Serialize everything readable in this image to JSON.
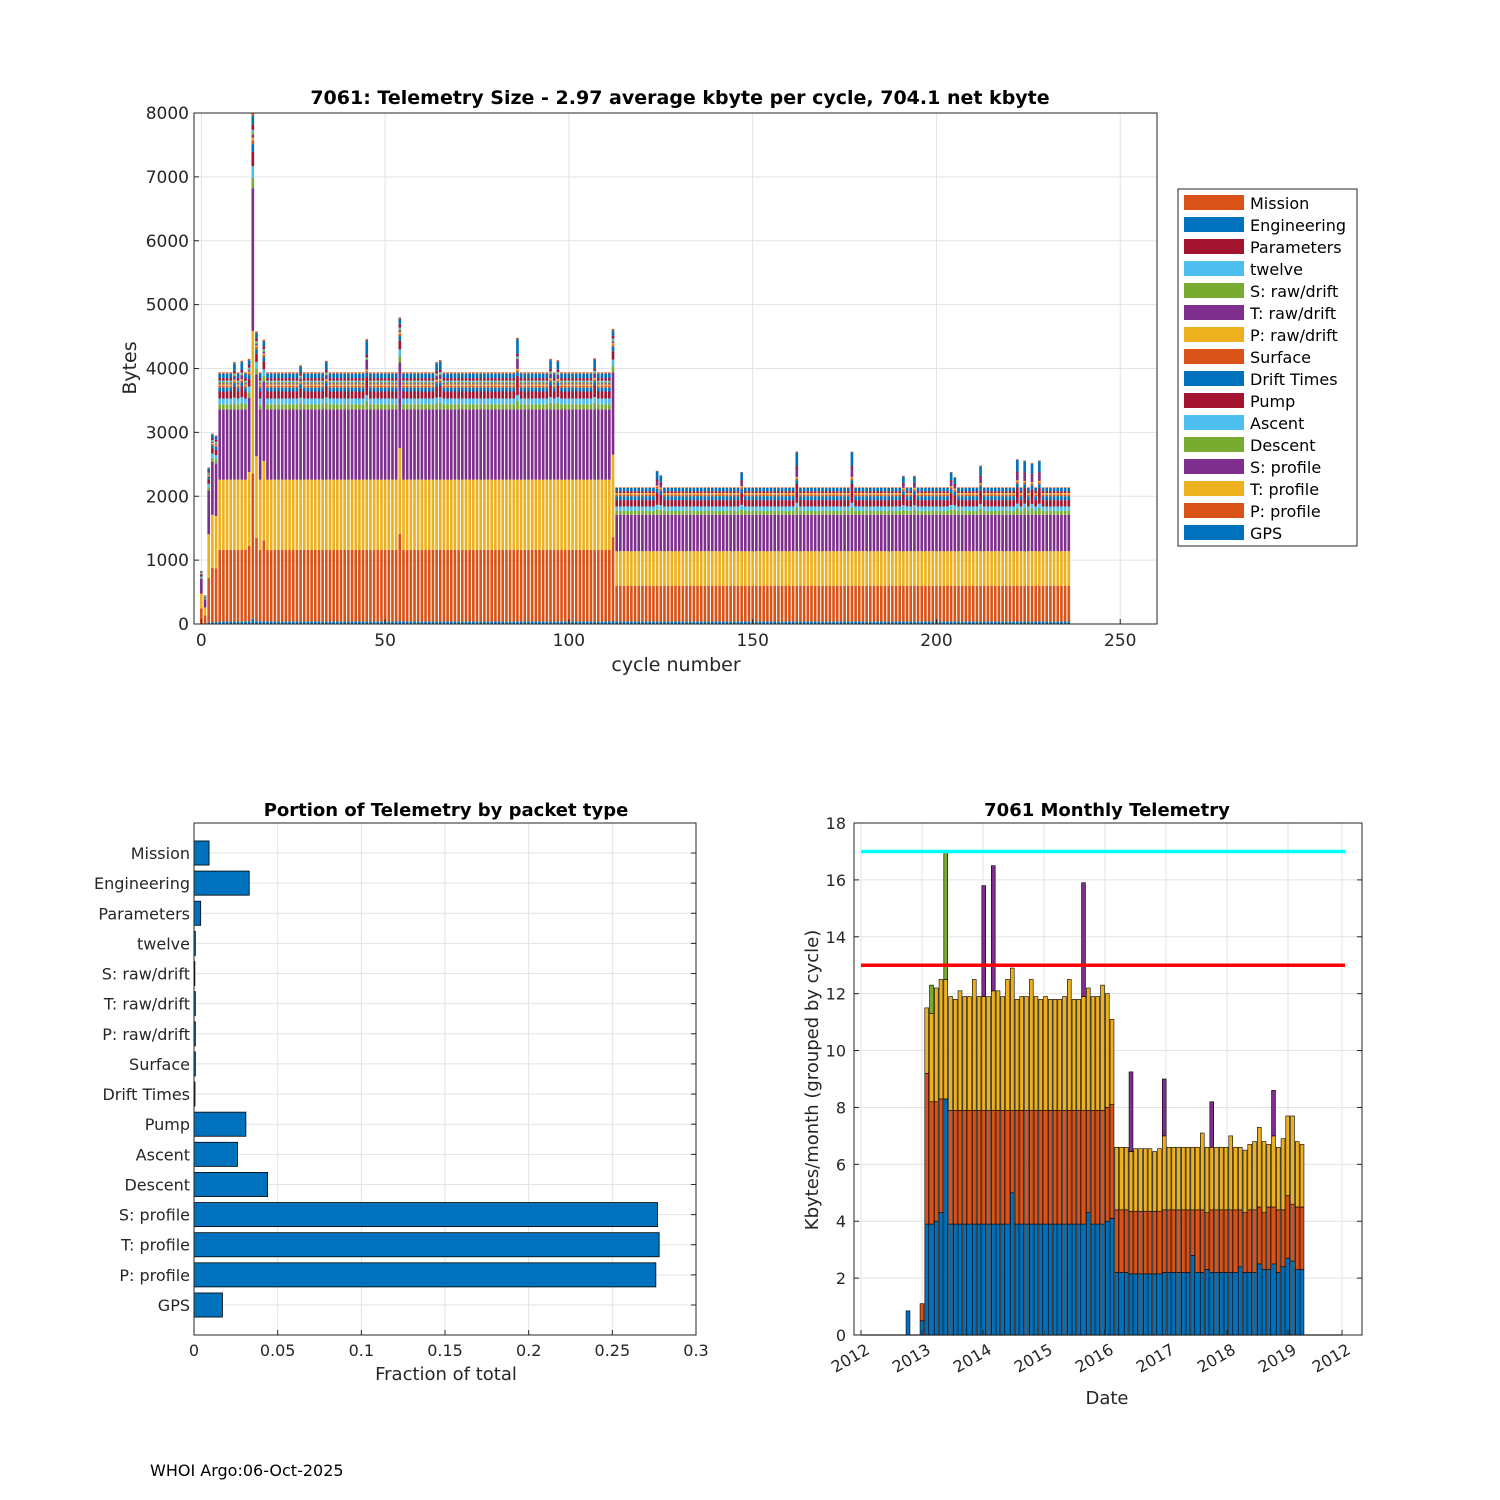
{
  "footer": "WHOI Argo:06-Oct-2025",
  "chart_data": [
    {
      "type": "bar",
      "stacked": true,
      "title": "7061: Telemetry Size - 2.97 average kbyte per cycle,  704.1 net kbyte",
      "xlabel": "cycle number",
      "ylabel": "Bytes",
      "xlim": [
        -2,
        260
      ],
      "ylim": [
        0,
        8000
      ],
      "xticks": [
        "0",
        "50",
        "100",
        "150",
        "200",
        "250"
      ],
      "yticks": [
        "0",
        "1000",
        "2000",
        "3000",
        "4000",
        "5000",
        "6000",
        "7000",
        "8000"
      ],
      "grid": true,
      "legend_location": "outside-right",
      "legend": [
        {
          "name": "Mission",
          "color": "#D95319"
        },
        {
          "name": "Engineering",
          "color": "#0072BD"
        },
        {
          "name": "Parameters",
          "color": "#A2142F"
        },
        {
          "name": "twelve",
          "color": "#4DBEEE"
        },
        {
          "name": "S: raw/drift",
          "color": "#77AC30"
        },
        {
          "name": "T: raw/drift",
          "color": "#7E2F8E"
        },
        {
          "name": "P: raw/drift",
          "color": "#EDB120"
        },
        {
          "name": "Surface",
          "color": "#D95319"
        },
        {
          "name": "Drift Times",
          "color": "#0072BD"
        },
        {
          "name": "Pump",
          "color": "#A2142F"
        },
        {
          "name": "Ascent",
          "color": "#4DBEEE"
        },
        {
          "name": "Descent",
          "color": "#77AC30"
        },
        {
          "name": "S: profile",
          "color": "#7E2F8E"
        },
        {
          "name": "T: profile",
          "color": "#EDB120"
        },
        {
          "name": "P: profile",
          "color": "#D95319"
        },
        {
          "name": "GPS",
          "color": "#0072BD"
        }
      ],
      "stack_order": [
        "GPS",
        "P: profile",
        "T: profile",
        "S: profile",
        "Descent",
        "Ascent",
        "Pump",
        "Drift Times",
        "Surface",
        "P: raw/drift",
        "T: raw/drift",
        "S: raw/drift",
        "twelve",
        "Parameters",
        "Engineering",
        "Mission"
      ],
      "cycle_range": [
        0,
        236
      ],
      "regime_a": {
        "cycles": [
          5,
          112
        ],
        "segments": [
          40,
          1120,
          1100,
          1100,
          80,
          90,
          110,
          60,
          30,
          20,
          20,
          20,
          20,
          40,
          70,
          20
        ]
      },
      "regime_b": {
        "cycles": [
          113,
          236
        ],
        "segments": [
          40,
          560,
          540,
          570,
          60,
          70,
          100,
          60,
          30,
          20,
          0,
          0,
          0,
          30,
          50,
          10
        ]
      },
      "special_cycles": [
        {
          "cycle": 0,
          "total": 830
        },
        {
          "cycle": 1,
          "total": 450
        },
        {
          "cycle": 2,
          "total": 2450
        },
        {
          "cycle": 3,
          "total": 2980
        },
        {
          "cycle": 4,
          "total": 2950
        },
        {
          "cycle": 13,
          "total": 4150
        },
        {
          "cycle": 14,
          "total": 8000
        },
        {
          "cycle": 15,
          "total": 4580
        },
        {
          "cycle": 17,
          "total": 4450
        },
        {
          "cycle": 54,
          "total": 4800
        },
        {
          "cycle": 112,
          "total": 4620
        }
      ],
      "spikes": [
        {
          "cycle": 9,
          "total": 4100
        },
        {
          "cycle": 11,
          "total": 4120
        },
        {
          "cycle": 27,
          "total": 4050
        },
        {
          "cycle": 34,
          "total": 4120
        },
        {
          "cycle": 45,
          "total": 4460
        },
        {
          "cycle": 64,
          "total": 4100
        },
        {
          "cycle": 65,
          "total": 4130
        },
        {
          "cycle": 86,
          "total": 4480
        },
        {
          "cycle": 95,
          "total": 4150
        },
        {
          "cycle": 97,
          "total": 4130
        },
        {
          "cycle": 107,
          "total": 4160
        },
        {
          "cycle": 124,
          "total": 2400
        },
        {
          "cycle": 125,
          "total": 2330
        },
        {
          "cycle": 147,
          "total": 2380
        },
        {
          "cycle": 162,
          "total": 2700
        },
        {
          "cycle": 177,
          "total": 2700
        },
        {
          "cycle": 191,
          "total": 2320
        },
        {
          "cycle": 194,
          "total": 2320
        },
        {
          "cycle": 204,
          "total": 2380
        },
        {
          "cycle": 205,
          "total": 2300
        },
        {
          "cycle": 212,
          "total": 2480
        },
        {
          "cycle": 222,
          "total": 2580
        },
        {
          "cycle": 224,
          "total": 2560
        },
        {
          "cycle": 226,
          "total": 2520
        },
        {
          "cycle": 228,
          "total": 2560
        }
      ]
    },
    {
      "type": "barh",
      "title": "Portion of Telemetry by packet type",
      "xlabel": "Fraction of total",
      "xlim": [
        0,
        0.3
      ],
      "xticks": [
        "0",
        "0.05",
        "0.1",
        "0.15",
        "0.2",
        "0.25",
        "0.3"
      ],
      "grid": true,
      "color": "#0072BD",
      "categories": [
        "Mission",
        "Engineering",
        "Parameters",
        "twelve",
        "S: raw/drift",
        "T: raw/drift",
        "P: raw/drift",
        "Surface",
        "Drift Times",
        "Pump",
        "Ascent",
        "Descent",
        "S: profile",
        "T: profile",
        "P: profile",
        "GPS"
      ],
      "values": [
        0.009,
        0.033,
        0.004,
        0.0008,
        0.0005,
        0.0008,
        0.0008,
        0.0008,
        0.0006,
        0.031,
        0.026,
        0.044,
        0.277,
        0.278,
        0.276,
        0.017
      ]
    },
    {
      "type": "bar",
      "stacked": true,
      "title": "7061 Monthly Telemetry",
      "xlabel": "Date",
      "ylabel": "Kbytes/month (grouped by cycle)",
      "ylim": [
        0,
        18
      ],
      "yticks": [
        "0",
        "2",
        "4",
        "6",
        "8",
        "10",
        "12",
        "14",
        "16",
        "18"
      ],
      "xticks": [
        "2012",
        "2013",
        "2014",
        "2015",
        "2016",
        "2017",
        "2018",
        "2019",
        "2012"
      ],
      "grid": true,
      "reference_lines": [
        {
          "value": 17,
          "color": "#00FFFF"
        },
        {
          "value": 13,
          "color": "#FF0000"
        }
      ],
      "series_colors": [
        "#0072BD",
        "#D95319",
        "#EDB120",
        "#7E2F8E",
        "#77AC30"
      ],
      "months": [
        [
          0.85,
          0,
          0,
          0,
          0
        ],
        [
          0.5,
          0.6,
          0,
          0,
          0
        ],
        [
          3.9,
          5.3,
          2.3,
          0,
          0
        ],
        [
          3.9,
          4.3,
          3.1,
          0,
          1.0
        ],
        [
          4.0,
          4.2,
          4.0,
          0,
          0
        ],
        [
          4.3,
          4.0,
          4.2,
          0,
          0
        ],
        [
          8.3,
          0,
          4.2,
          0,
          4.5
        ],
        [
          3.9,
          4.0,
          4.0,
          0,
          0
        ],
        [
          3.9,
          4.0,
          3.9,
          0,
          0
        ],
        [
          3.9,
          4.0,
          4.2,
          0,
          0
        ],
        [
          3.9,
          4.0,
          4.0,
          0,
          0
        ],
        [
          3.9,
          4.0,
          4.0,
          0,
          0
        ],
        [
          3.9,
          4.0,
          4.6,
          0,
          0
        ],
        [
          3.9,
          4.0,
          4.0,
          0,
          0
        ],
        [
          3.9,
          4.0,
          4.0,
          3.9,
          0
        ],
        [
          3.9,
          4.0,
          4.0,
          0,
          0
        ],
        [
          3.9,
          4.0,
          4.2,
          4.4,
          0
        ],
        [
          3.9,
          4.0,
          4.2,
          0,
          0
        ],
        [
          3.9,
          4.0,
          4.0,
          0,
          0
        ],
        [
          3.9,
          4.0,
          4.6,
          0,
          0
        ],
        [
          5.0,
          2.9,
          5.0,
          0,
          0
        ],
        [
          3.9,
          4.0,
          3.9,
          0,
          0
        ],
        [
          3.9,
          4.0,
          4.0,
          0,
          0
        ],
        [
          3.9,
          4.0,
          4.0,
          0,
          0
        ],
        [
          3.9,
          4.0,
          4.6,
          0,
          0
        ],
        [
          3.9,
          4.0,
          4.0,
          0,
          0
        ],
        [
          3.9,
          4.0,
          3.9,
          0,
          0
        ],
        [
          3.9,
          4.0,
          4.0,
          0,
          0
        ],
        [
          3.9,
          4.0,
          3.9,
          0,
          0
        ],
        [
          3.9,
          4.0,
          3.9,
          0,
          0
        ],
        [
          3.9,
          4.0,
          3.9,
          0,
          0
        ],
        [
          3.9,
          4.0,
          4.0,
          0,
          0
        ],
        [
          3.9,
          4.0,
          4.6,
          0,
          0
        ],
        [
          3.9,
          4.0,
          3.9,
          0,
          0
        ],
        [
          3.9,
          4.0,
          3.9,
          0,
          0
        ],
        [
          3.9,
          4.0,
          4.0,
          4.0,
          0
        ],
        [
          4.3,
          3.6,
          4.3,
          0,
          0
        ],
        [
          3.9,
          4.0,
          4.0,
          0,
          0
        ],
        [
          3.9,
          4.0,
          4.0,
          0,
          0
        ],
        [
          3.9,
          4.0,
          4.4,
          0,
          0
        ],
        [
          4.0,
          4.0,
          4.0,
          0,
          0
        ],
        [
          4.1,
          4.0,
          3.0,
          0,
          0
        ],
        [
          2.2,
          2.2,
          2.2,
          0,
          0
        ],
        [
          2.2,
          2.2,
          2.2,
          0,
          0
        ],
        [
          2.2,
          2.2,
          2.2,
          0,
          0
        ],
        [
          2.15,
          2.2,
          2.1,
          2.8,
          0
        ],
        [
          2.15,
          2.2,
          2.2,
          0,
          0
        ],
        [
          2.15,
          2.2,
          2.2,
          0,
          0
        ],
        [
          2.15,
          2.2,
          2.2,
          0,
          0
        ],
        [
          2.15,
          2.2,
          2.2,
          0,
          0
        ],
        [
          2.15,
          2.2,
          2.1,
          0,
          0
        ],
        [
          2.15,
          2.2,
          2.2,
          0,
          0
        ],
        [
          2.2,
          2.2,
          2.6,
          2.0,
          0
        ],
        [
          2.2,
          2.2,
          2.2,
          0,
          0
        ],
        [
          2.2,
          2.2,
          2.2,
          0,
          0
        ],
        [
          2.2,
          2.2,
          2.2,
          0,
          0
        ],
        [
          2.2,
          2.2,
          2.2,
          0,
          0
        ],
        [
          2.2,
          2.2,
          2.2,
          0,
          0
        ],
        [
          2.8,
          1.6,
          2.2,
          0,
          0
        ],
        [
          2.2,
          2.2,
          2.2,
          0,
          0
        ],
        [
          2.2,
          2.2,
          2.7,
          0,
          0
        ],
        [
          2.3,
          2.0,
          2.3,
          0,
          0
        ],
        [
          2.2,
          2.2,
          2.2,
          1.6,
          0
        ],
        [
          2.2,
          2.2,
          2.2,
          0,
          0
        ],
        [
          2.2,
          2.2,
          2.2,
          0,
          0
        ],
        [
          2.2,
          2.2,
          2.2,
          0,
          0
        ],
        [
          2.2,
          2.2,
          2.6,
          0,
          0
        ],
        [
          2.2,
          2.2,
          2.2,
          0,
          0
        ],
        [
          2.4,
          2.0,
          2.2,
          0,
          0
        ],
        [
          2.2,
          2.1,
          2.2,
          0,
          0
        ],
        [
          2.2,
          2.2,
          2.3,
          0,
          0
        ],
        [
          2.2,
          2.2,
          2.4,
          0,
          0
        ],
        [
          2.5,
          2.0,
          2.8,
          0,
          0
        ],
        [
          2.3,
          2.0,
          2.5,
          0,
          0
        ],
        [
          2.3,
          2.2,
          2.2,
          0,
          0
        ],
        [
          2.5,
          2.0,
          2.5,
          1.6,
          0
        ],
        [
          2.2,
          2.2,
          2.2,
          0,
          0
        ],
        [
          2.4,
          2.0,
          2.5,
          0,
          0
        ],
        [
          2.7,
          2.2,
          2.8,
          0,
          0
        ],
        [
          2.6,
          2.0,
          3.1,
          0,
          0
        ],
        [
          2.3,
          2.2,
          2.3,
          0,
          0
        ],
        [
          2.3,
          2.2,
          2.2,
          0,
          0
        ]
      ]
    }
  ]
}
